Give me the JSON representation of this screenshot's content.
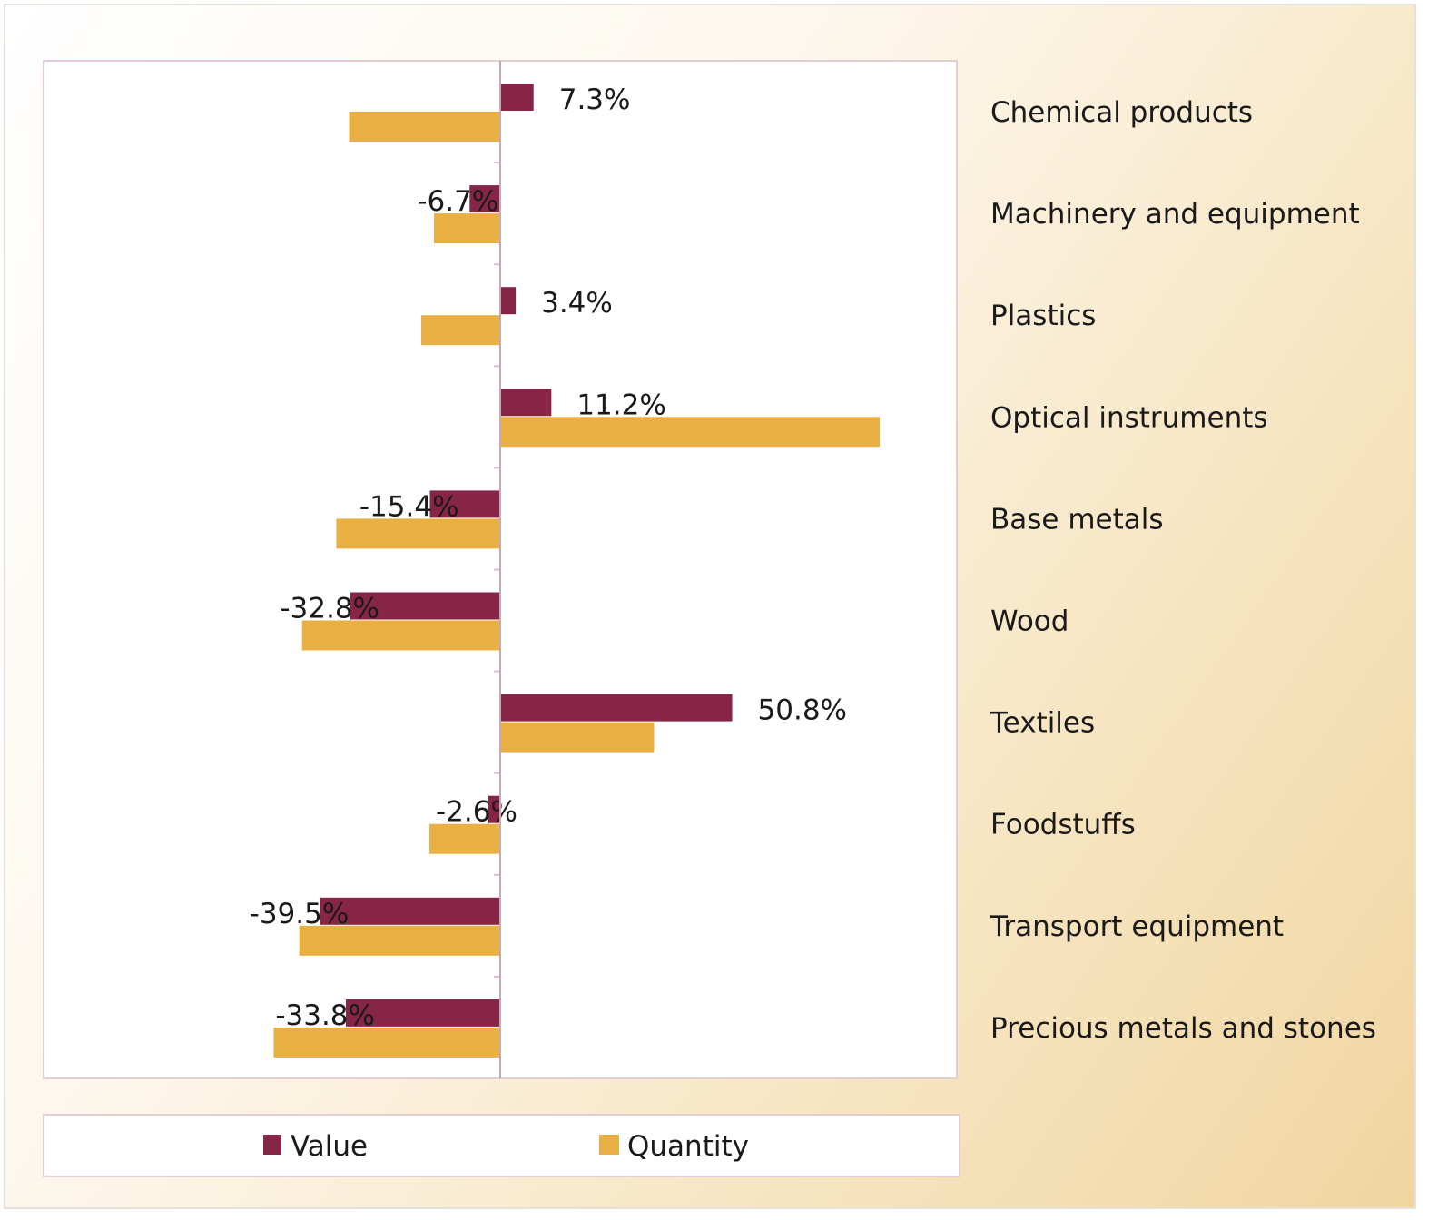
{
  "chart_data": {
    "type": "bar",
    "orientation": "horizontal",
    "categories": [
      "Chemical products",
      "Machinery and equipment",
      "Plastics",
      "Optical instruments",
      "Base metals",
      "Wood",
      "Textiles",
      "Foodstuffs",
      "Transport equipment",
      "Precious metals and stones"
    ],
    "series": [
      {
        "name": "Value",
        "color": "#862545",
        "values": [
          7.3,
          -6.7,
          3.4,
          11.2,
          -15.4,
          -32.8,
          50.8,
          -2.6,
          -39.5,
          -33.8
        ],
        "labels": [
          "7.3%",
          "-6.7%",
          "3.4%",
          "11.2%",
          "-15.4%",
          "-32.8%",
          "50.8%",
          "-2.6%",
          "-39.5%",
          "-33.8%"
        ]
      },
      {
        "name": "Quantity",
        "color": "#e8b042",
        "values": [
          -33.1,
          -14.5,
          -17.3,
          83.1,
          -35.9,
          -43.4,
          33.7,
          -15.5,
          -44.0,
          -49.6
        ]
      }
    ],
    "xlim": [
      -100,
      100
    ],
    "grid": false,
    "category_labels_position": "right",
    "legend": "bottom"
  }
}
